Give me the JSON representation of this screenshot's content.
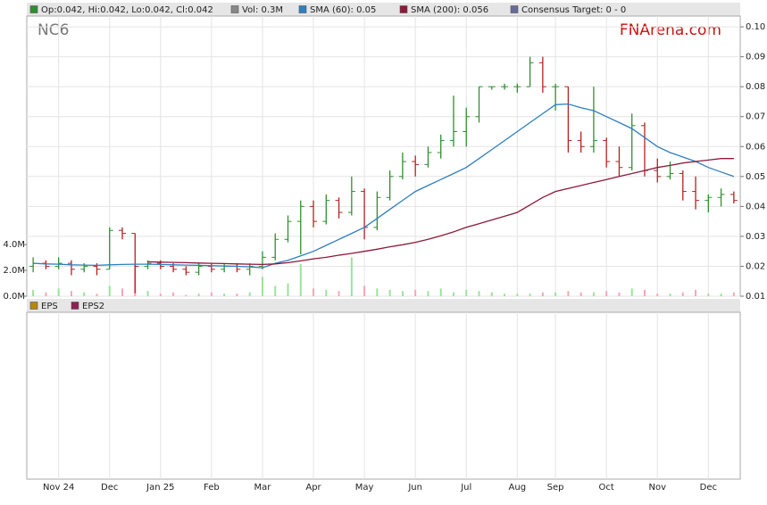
{
  "chart_data": [
    {
      "type": "ohlc",
      "title": "NC6",
      "watermark": "FNArena.com",
      "categories": [
        null,
        null,
        "Nov 24",
        null,
        null,
        null,
        "Dec",
        null,
        null,
        null,
        "Jan 25",
        null,
        null,
        null,
        "Feb",
        null,
        null,
        null,
        "Mar",
        null,
        null,
        null,
        "Apr",
        null,
        null,
        null,
        "May",
        null,
        null,
        null,
        "Jun",
        null,
        null,
        null,
        "Jul",
        null,
        null,
        null,
        "Aug",
        null,
        null,
        "Sep",
        null,
        null,
        null,
        "Oct",
        null,
        null,
        null,
        "Nov",
        null,
        null,
        null,
        "Dec",
        null,
        null
      ],
      "ohlc": {
        "name": "Op:0.042, Hi:0.042, Lo:0.042, Cl:0.042",
        "color": "#2f8f2f",
        "up_color": "#2f8f2f",
        "down_color": "#b22222",
        "open": [
          0.02,
          0.021,
          0.02,
          0.021,
          0.019,
          0.02,
          0.019,
          0.032,
          0.031,
          0.02,
          0.021,
          0.02,
          0.019,
          0.018,
          0.02,
          0.019,
          0.02,
          0.019,
          0.02,
          0.023,
          0.029,
          0.035,
          0.04,
          0.035,
          0.042,
          0.038,
          0.045,
          0.033,
          0.043,
          0.05,
          0.055,
          0.054,
          0.058,
          0.062,
          0.065,
          0.07,
          0.08,
          0.08,
          0.08,
          0.08,
          0.088,
          0.08,
          0.08,
          0.062,
          0.06,
          0.062,
          0.055,
          0.053,
          0.067,
          0.052,
          0.05,
          0.051,
          0.045,
          0.042,
          0.043,
          0.044
        ],
        "high": [
          0.023,
          0.022,
          0.023,
          0.022,
          0.021,
          0.021,
          0.033,
          0.033,
          0.031,
          0.022,
          0.022,
          0.021,
          0.02,
          0.021,
          0.021,
          0.021,
          0.021,
          0.021,
          0.025,
          0.031,
          0.037,
          0.042,
          0.042,
          0.044,
          0.043,
          0.05,
          0.046,
          0.045,
          0.052,
          0.058,
          0.057,
          0.06,
          0.064,
          0.077,
          0.073,
          0.08,
          0.08,
          0.081,
          0.081,
          0.09,
          0.09,
          0.081,
          0.08,
          0.065,
          0.08,
          0.063,
          0.06,
          0.071,
          0.068,
          0.056,
          0.055,
          0.052,
          0.05,
          0.044,
          0.046,
          0.045
        ],
        "low": [
          0.018,
          0.019,
          0.019,
          0.017,
          0.018,
          0.017,
          0.019,
          0.029,
          0.011,
          0.019,
          0.019,
          0.018,
          0.017,
          0.017,
          0.018,
          0.018,
          0.018,
          0.017,
          0.019,
          0.022,
          0.028,
          0.024,
          0.033,
          0.034,
          0.036,
          0.037,
          0.029,
          0.032,
          0.042,
          0.049,
          0.05,
          0.053,
          0.056,
          0.06,
          0.06,
          0.068,
          0.079,
          0.079,
          0.078,
          0.08,
          0.078,
          0.072,
          0.058,
          0.058,
          0.058,
          0.053,
          0.05,
          0.052,
          0.05,
          0.048,
          0.049,
          0.042,
          0.039,
          0.038,
          0.04,
          0.041
        ],
        "close": [
          0.021,
          0.02,
          0.021,
          0.019,
          0.02,
          0.019,
          0.032,
          0.031,
          0.02,
          0.021,
          0.02,
          0.019,
          0.018,
          0.02,
          0.019,
          0.02,
          0.019,
          0.02,
          0.023,
          0.029,
          0.035,
          0.04,
          0.035,
          0.042,
          0.038,
          0.045,
          0.033,
          0.043,
          0.05,
          0.055,
          0.054,
          0.058,
          0.062,
          0.065,
          0.07,
          0.08,
          0.08,
          0.08,
          0.08,
          0.088,
          0.08,
          0.08,
          0.062,
          0.06,
          0.062,
          0.055,
          0.053,
          0.067,
          0.052,
          0.05,
          0.051,
          0.045,
          0.042,
          0.043,
          0.044,
          0.042
        ]
      },
      "volume": {
        "name": "Vol: 0.3M",
        "color": "#888888",
        "up_color": "#9be39b",
        "down_color": "#f3a8b6",
        "axis": "y2",
        "values": [
          0.5,
          0.3,
          0.6,
          0.4,
          0.3,
          0.2,
          0.8,
          0.6,
          2.5,
          0.4,
          0.2,
          0.3,
          0.1,
          0.2,
          0.3,
          0.2,
          0.2,
          0.3,
          1.5,
          0.8,
          1.0,
          2.5,
          0.6,
          0.5,
          0.4,
          3.0,
          0.8,
          0.6,
          0.5,
          0.4,
          0.5,
          0.4,
          0.6,
          0.3,
          0.5,
          0.4,
          0.3,
          0.2,
          0.2,
          0.2,
          0.3,
          0.3,
          0.4,
          0.3,
          0.3,
          0.4,
          0.3,
          0.6,
          0.5,
          0.2,
          0.2,
          0.3,
          0.5,
          0.2,
          0.2,
          0.3
        ]
      },
      "series": [
        {
          "name": "SMA (60): 0.05",
          "color": "#2e7fbf",
          "values": [
            0.021,
            0.0208,
            0.0207,
            0.0205,
            0.0204,
            0.0203,
            0.0205,
            0.0206,
            0.0207,
            0.0207,
            0.0206,
            0.0205,
            0.0204,
            0.0203,
            0.0202,
            0.0201,
            0.02,
            0.0198,
            0.0195,
            0.021,
            0.022,
            0.0235,
            0.025,
            0.027,
            0.029,
            0.031,
            0.033,
            0.036,
            0.039,
            0.042,
            0.045,
            0.047,
            0.049,
            0.051,
            0.053,
            0.056,
            0.059,
            0.062,
            0.065,
            0.068,
            0.071,
            0.074,
            0.0742,
            0.073,
            0.072,
            0.07,
            0.068,
            0.066,
            0.063,
            0.06,
            0.058,
            0.0565,
            0.055,
            0.053,
            0.0515,
            0.05
          ]
        },
        {
          "name": "SMA (200): 0.056",
          "color": "#8b1a3a",
          "values": [
            null,
            null,
            null,
            null,
            null,
            null,
            null,
            null,
            null,
            0.0215,
            0.0214,
            0.0213,
            0.0212,
            0.0211,
            0.021,
            0.0209,
            0.0208,
            0.0207,
            0.0206,
            0.0208,
            0.0212,
            0.0218,
            0.0225,
            0.023,
            0.0237,
            0.0243,
            0.025,
            0.0257,
            0.0265,
            0.0272,
            0.028,
            0.029,
            0.0302,
            0.0315,
            0.033,
            0.0342,
            0.0355,
            0.0367,
            0.038,
            0.0405,
            0.043,
            0.045,
            0.046,
            0.047,
            0.048,
            0.049,
            0.05,
            0.051,
            0.052,
            0.053,
            0.0537,
            0.0545,
            0.055,
            0.0555,
            0.056,
            0.056
          ]
        }
      ],
      "consensus": {
        "name": "Consensus Target: 0 - 0",
        "color": "#6a6a9a"
      },
      "ylim": [
        0.01,
        0.1036
      ],
      "yticks": [
        0.01,
        0.02,
        0.03,
        0.04,
        0.05,
        0.06,
        0.07,
        0.08,
        0.09,
        {
          "value": 0.1,
          "label": "0.10"
        }
      ],
      "y2lim": [
        0,
        21.7
      ],
      "y2ticks": [
        {
          "value": 0,
          "label": "0.0M"
        },
        {
          "value": 2,
          "label": "2.0M"
        },
        {
          "value": 4,
          "label": "4.0M"
        }
      ],
      "grid": true
    },
    {
      "type": "line",
      "series": [
        {
          "name": "EPS",
          "color": "#b8860b",
          "values": []
        },
        {
          "name": "EPS2",
          "color": "#8b2252",
          "values": []
        }
      ]
    }
  ]
}
